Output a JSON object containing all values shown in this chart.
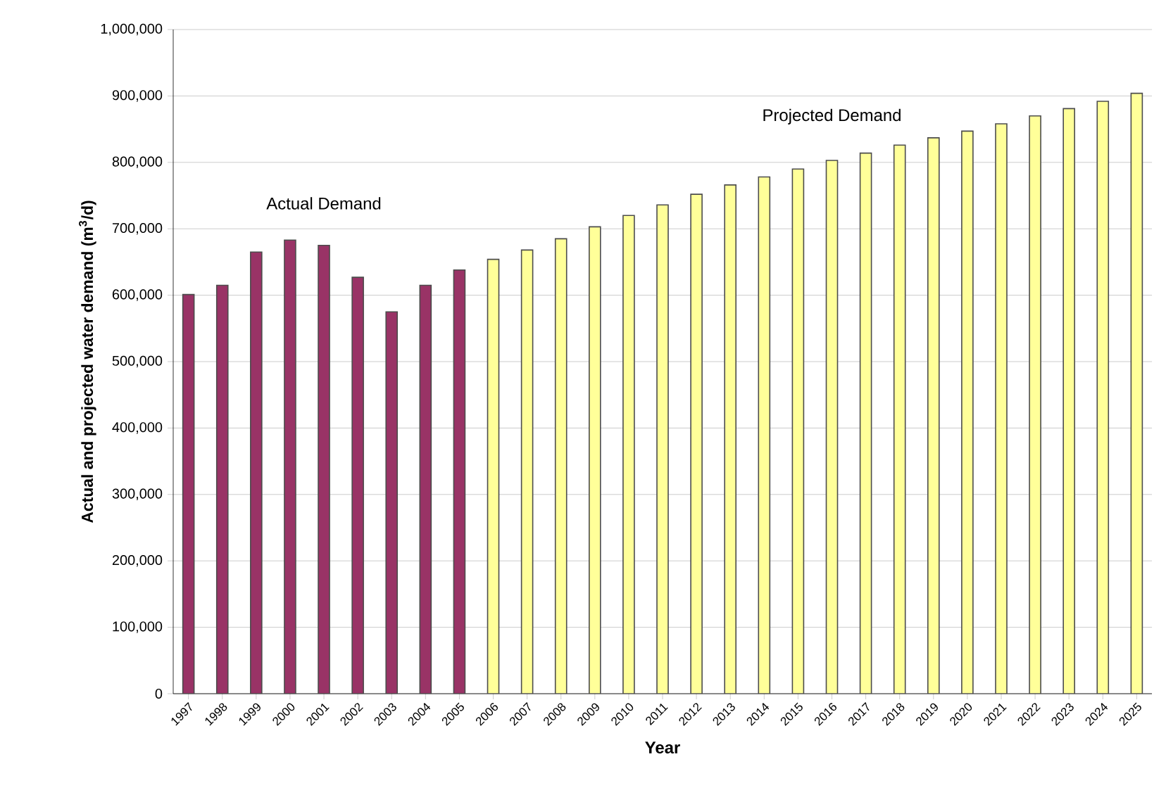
{
  "chart_data": {
    "type": "bar",
    "xlabel": "Year",
    "ylabel": "Actual and projected water demand (m$^{3}$/d)",
    "categories": [
      "1997",
      "1998",
      "1999",
      "2000",
      "2001",
      "2002",
      "2003",
      "2004",
      "2005",
      "2006",
      "2007",
      "2008",
      "2009",
      "2010",
      "2011",
      "2012",
      "2013",
      "2014",
      "2015",
      "2016",
      "2017",
      "2018",
      "2019",
      "2020",
      "2021",
      "2022",
      "2023",
      "2024",
      "2025"
    ],
    "series": [
      {
        "name": "Actual Demand",
        "color": "#993366",
        "values": [
          601000,
          615000,
          665000,
          683000,
          675000,
          627000,
          575000,
          615000,
          638000,
          null,
          null,
          null,
          null,
          null,
          null,
          null,
          null,
          null,
          null,
          null,
          null,
          null,
          null,
          null,
          null,
          null,
          null,
          null,
          null
        ]
      },
      {
        "name": "Projected Demand",
        "color": "#ffff99",
        "values": [
          null,
          null,
          null,
          null,
          null,
          null,
          null,
          null,
          null,
          654000,
          668000,
          685000,
          703000,
          720000,
          736000,
          752000,
          766000,
          778000,
          790000,
          803000,
          814000,
          826000,
          837000,
          847000,
          858000,
          870000,
          881000,
          892000,
          904000
        ]
      }
    ],
    "ylim": [
      0,
      1000000
    ],
    "yticks": [
      {
        "value": 0,
        "label": "0"
      },
      {
        "value": 100000,
        "label": "100,000"
      },
      {
        "value": 200000,
        "label": "200,000"
      },
      {
        "value": 300000,
        "label": "300,000"
      },
      {
        "value": 400000,
        "label": "400,000"
      },
      {
        "value": 500000,
        "label": "500,000"
      },
      {
        "value": 600000,
        "label": "600,000"
      },
      {
        "value": 700000,
        "label": "700,000"
      },
      {
        "value": 800000,
        "label": "800,000"
      },
      {
        "value": 900000,
        "label": "900,000"
      },
      {
        "value": 1000000,
        "label": "1,000,000"
      }
    ],
    "grid": "y",
    "legend": false
  }
}
